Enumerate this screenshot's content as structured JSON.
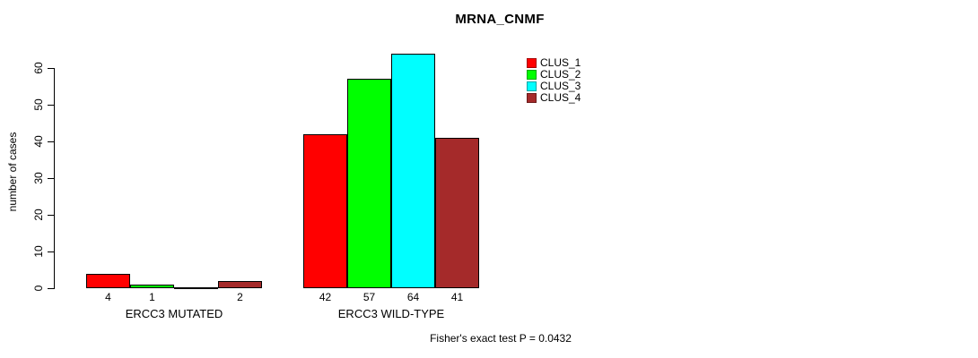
{
  "title": "MRNA_CNMF",
  "footnote": "Fisher's exact test P = 0.0432",
  "legend": {
    "items": [
      {
        "label": "CLUS_1",
        "color": "#FF0000"
      },
      {
        "label": "CLUS_2",
        "color": "#00FF00"
      },
      {
        "label": "CLUS_3",
        "color": "#00FFFF"
      },
      {
        "label": "CLUS_4",
        "color": "#A52A2A"
      }
    ]
  },
  "chart_data": {
    "type": "bar",
    "title": "MRNA_CNMF",
    "xlabel": "",
    "ylabel": "number of cases",
    "ylim": [
      0,
      60
    ],
    "yticks": [
      0,
      10,
      20,
      30,
      40,
      50,
      60
    ],
    "grid": false,
    "legend_position": "top-right",
    "categories": [
      "ERCC3 MUTATED",
      "ERCC3 WILD-TYPE"
    ],
    "series": [
      {
        "name": "CLUS_1",
        "color": "#FF0000",
        "values": [
          4,
          42
        ]
      },
      {
        "name": "CLUS_2",
        "color": "#00FF00",
        "values": [
          1,
          57
        ]
      },
      {
        "name": "CLUS_3",
        "color": "#00FFFF",
        "values": [
          0,
          64
        ]
      },
      {
        "name": "CLUS_4",
        "color": "#A52A2A",
        "values": [
          2,
          41
        ]
      }
    ],
    "bar_value_labels": [
      [
        "4",
        "1",
        "",
        "2"
      ],
      [
        "42",
        "57",
        "64",
        "41"
      ]
    ],
    "annotation": "Fisher's exact test P = 0.0432"
  }
}
